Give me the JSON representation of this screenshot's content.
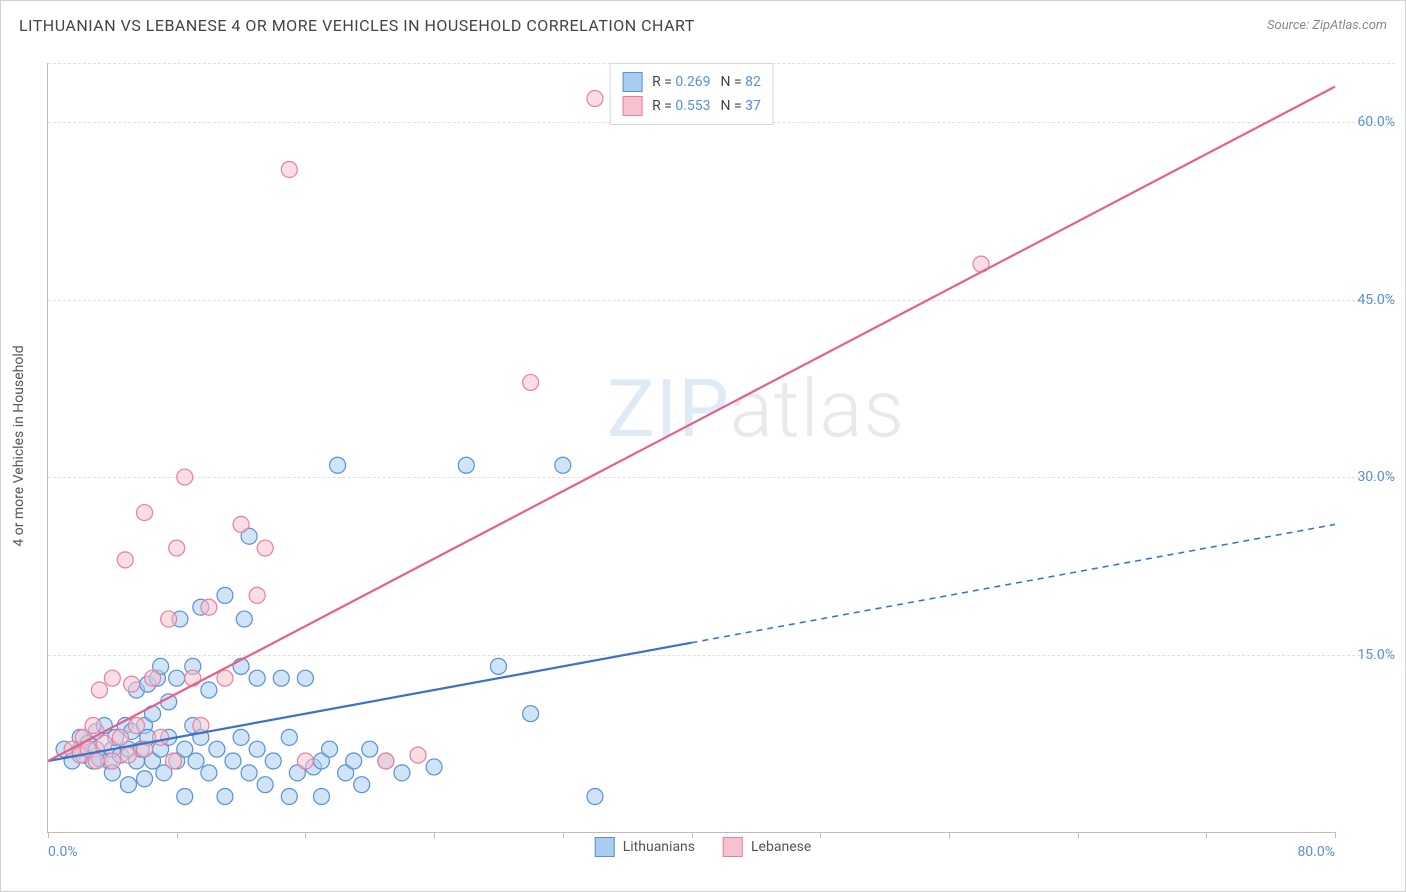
{
  "title": "LITHUANIAN VS LEBANESE 4 OR MORE VEHICLES IN HOUSEHOLD CORRELATION CHART",
  "source_label": "Source: ZipAtlas.com",
  "y_axis_label": "4 or more Vehicles in Household",
  "watermark": {
    "bold": "ZIP",
    "thin": "atlas"
  },
  "chart": {
    "type": "scatter-with-trendlines",
    "background_color": "#ffffff",
    "grid_color": "#e0e0e0",
    "axis_color": "#bdbdbd",
    "tick_label_color": "#5b8fd6",
    "title_color": "#444444",
    "xlim": [
      0,
      80
    ],
    "ylim": [
      0,
      65
    ],
    "y_ticks": [
      15,
      30,
      45,
      60
    ],
    "y_tick_labels": [
      "15.0%",
      "30.0%",
      "45.0%",
      "60.0%"
    ],
    "x_ticks": [
      0,
      8,
      16,
      24,
      32,
      40,
      48,
      56,
      64,
      72,
      80
    ],
    "x_tick_labels_shown": {
      "0": "0.0%",
      "80": "80.0%"
    },
    "marker_radius": 8,
    "marker_stroke_width": 1.2,
    "trendline_width": 2.2,
    "series": [
      {
        "name": "Lithuanians",
        "fill": "#a9cdf0",
        "fill_opacity": 0.55,
        "stroke": "#5b8fd6",
        "r_value": "0.269",
        "n_value": "82",
        "trendline": {
          "color": "#3a72c9",
          "x1": 0,
          "y1": 6,
          "x2": 40,
          "y2": 16,
          "dash_after_x": 40,
          "x2b": 80,
          "y2b": 26
        },
        "points": [
          [
            1,
            7
          ],
          [
            1.5,
            6
          ],
          [
            2,
            7
          ],
          [
            2,
            8
          ],
          [
            2.2,
            6.5
          ],
          [
            2.5,
            7.5
          ],
          [
            2.8,
            6
          ],
          [
            3,
            7
          ],
          [
            3,
            8.5
          ],
          [
            3.2,
            6.2
          ],
          [
            3.5,
            9
          ],
          [
            3.8,
            6
          ],
          [
            4,
            7
          ],
          [
            4,
            5
          ],
          [
            4.2,
            8
          ],
          [
            4.5,
            6.5
          ],
          [
            4.8,
            9
          ],
          [
            5,
            7
          ],
          [
            5,
            4
          ],
          [
            5.2,
            8.5
          ],
          [
            5.5,
            6
          ],
          [
            5.5,
            12
          ],
          [
            5.8,
            7
          ],
          [
            6,
            9
          ],
          [
            6,
            4.5
          ],
          [
            6.2,
            8
          ],
          [
            6.2,
            12.5
          ],
          [
            6.5,
            6
          ],
          [
            6.5,
            10
          ],
          [
            6.8,
            13
          ],
          [
            7,
            7
          ],
          [
            7,
            14
          ],
          [
            7.2,
            5
          ],
          [
            7.5,
            8
          ],
          [
            7.5,
            11
          ],
          [
            8,
            6
          ],
          [
            8,
            13
          ],
          [
            8.2,
            18
          ],
          [
            8.5,
            7
          ],
          [
            8.5,
            3
          ],
          [
            9,
            9
          ],
          [
            9,
            14
          ],
          [
            9.2,
            6
          ],
          [
            9.5,
            8
          ],
          [
            9.5,
            19
          ],
          [
            10,
            5
          ],
          [
            10,
            12
          ],
          [
            10.5,
            7
          ],
          [
            11,
            3
          ],
          [
            11,
            20
          ],
          [
            11.5,
            6
          ],
          [
            12,
            14
          ],
          [
            12,
            8
          ],
          [
            12.2,
            18
          ],
          [
            12.5,
            5
          ],
          [
            12.5,
            25
          ],
          [
            13,
            7
          ],
          [
            13,
            13
          ],
          [
            13.5,
            4
          ],
          [
            14,
            6
          ],
          [
            14.5,
            13
          ],
          [
            15,
            8
          ],
          [
            15,
            3
          ],
          [
            15.5,
            5
          ],
          [
            16,
            13
          ],
          [
            16.5,
            5.5
          ],
          [
            17,
            6
          ],
          [
            17.5,
            7
          ],
          [
            17,
            3
          ],
          [
            18,
            31
          ],
          [
            18.5,
            5
          ],
          [
            19,
            6
          ],
          [
            19.5,
            4
          ],
          [
            20,
            7
          ],
          [
            21,
            6
          ],
          [
            22,
            5
          ],
          [
            24,
            5.5
          ],
          [
            26,
            31
          ],
          [
            28,
            14
          ],
          [
            30,
            10
          ],
          [
            32,
            31
          ],
          [
            34,
            3
          ]
        ]
      },
      {
        "name": "Lebanese",
        "fill": "#f5c2ce",
        "fill_opacity": 0.55,
        "stroke": "#e97fa0",
        "r_value": "0.553",
        "n_value": "37",
        "trendline": {
          "color": "#e85f8a",
          "x1": 0,
          "y1": 6,
          "x2": 80,
          "y2": 63,
          "dash_after_x": null
        },
        "points": [
          [
            1.5,
            7
          ],
          [
            2,
            6.5
          ],
          [
            2.2,
            8
          ],
          [
            2.5,
            7
          ],
          [
            2.8,
            9
          ],
          [
            3,
            6
          ],
          [
            3.2,
            12
          ],
          [
            3.5,
            7.5
          ],
          [
            4,
            13
          ],
          [
            4,
            6
          ],
          [
            4.5,
            8
          ],
          [
            4.8,
            23
          ],
          [
            5,
            6.5
          ],
          [
            5.2,
            12.5
          ],
          [
            5.5,
            9
          ],
          [
            6,
            27
          ],
          [
            6,
            7
          ],
          [
            6.5,
            13
          ],
          [
            7,
            8
          ],
          [
            7.5,
            18
          ],
          [
            7.8,
            6
          ],
          [
            8,
            24
          ],
          [
            8.5,
            30
          ],
          [
            9,
            13
          ],
          [
            9.5,
            9
          ],
          [
            10,
            19
          ],
          [
            11,
            13
          ],
          [
            12,
            26
          ],
          [
            13,
            20
          ],
          [
            13.5,
            24
          ],
          [
            15,
            56
          ],
          [
            16,
            6
          ],
          [
            21,
            6
          ],
          [
            23,
            6.5
          ],
          [
            30,
            38
          ],
          [
            34,
            62
          ],
          [
            58,
            48
          ]
        ]
      }
    ],
    "legend_top": {
      "border_color": "#d6d6d6",
      "background": "#ffffff",
      "rows": [
        {
          "swatch_fill": "#a9cdf0",
          "swatch_stroke": "#5b8fd6",
          "r_label": "R = ",
          "r_val": "0.269",
          "n_label": "N = ",
          "n_val": "82"
        },
        {
          "swatch_fill": "#f5c2ce",
          "swatch_stroke": "#e97fa0",
          "r_label": "R = ",
          "r_val": "0.553",
          "n_label": "N = ",
          "n_val": "37"
        }
      ]
    },
    "legend_bottom": {
      "items": [
        {
          "swatch_fill": "#a9cdf0",
          "swatch_stroke": "#5b8fd6",
          "label": "Lithuanians"
        },
        {
          "swatch_fill": "#f5c2ce",
          "swatch_stroke": "#e97fa0",
          "label": "Lebanese"
        }
      ]
    }
  }
}
